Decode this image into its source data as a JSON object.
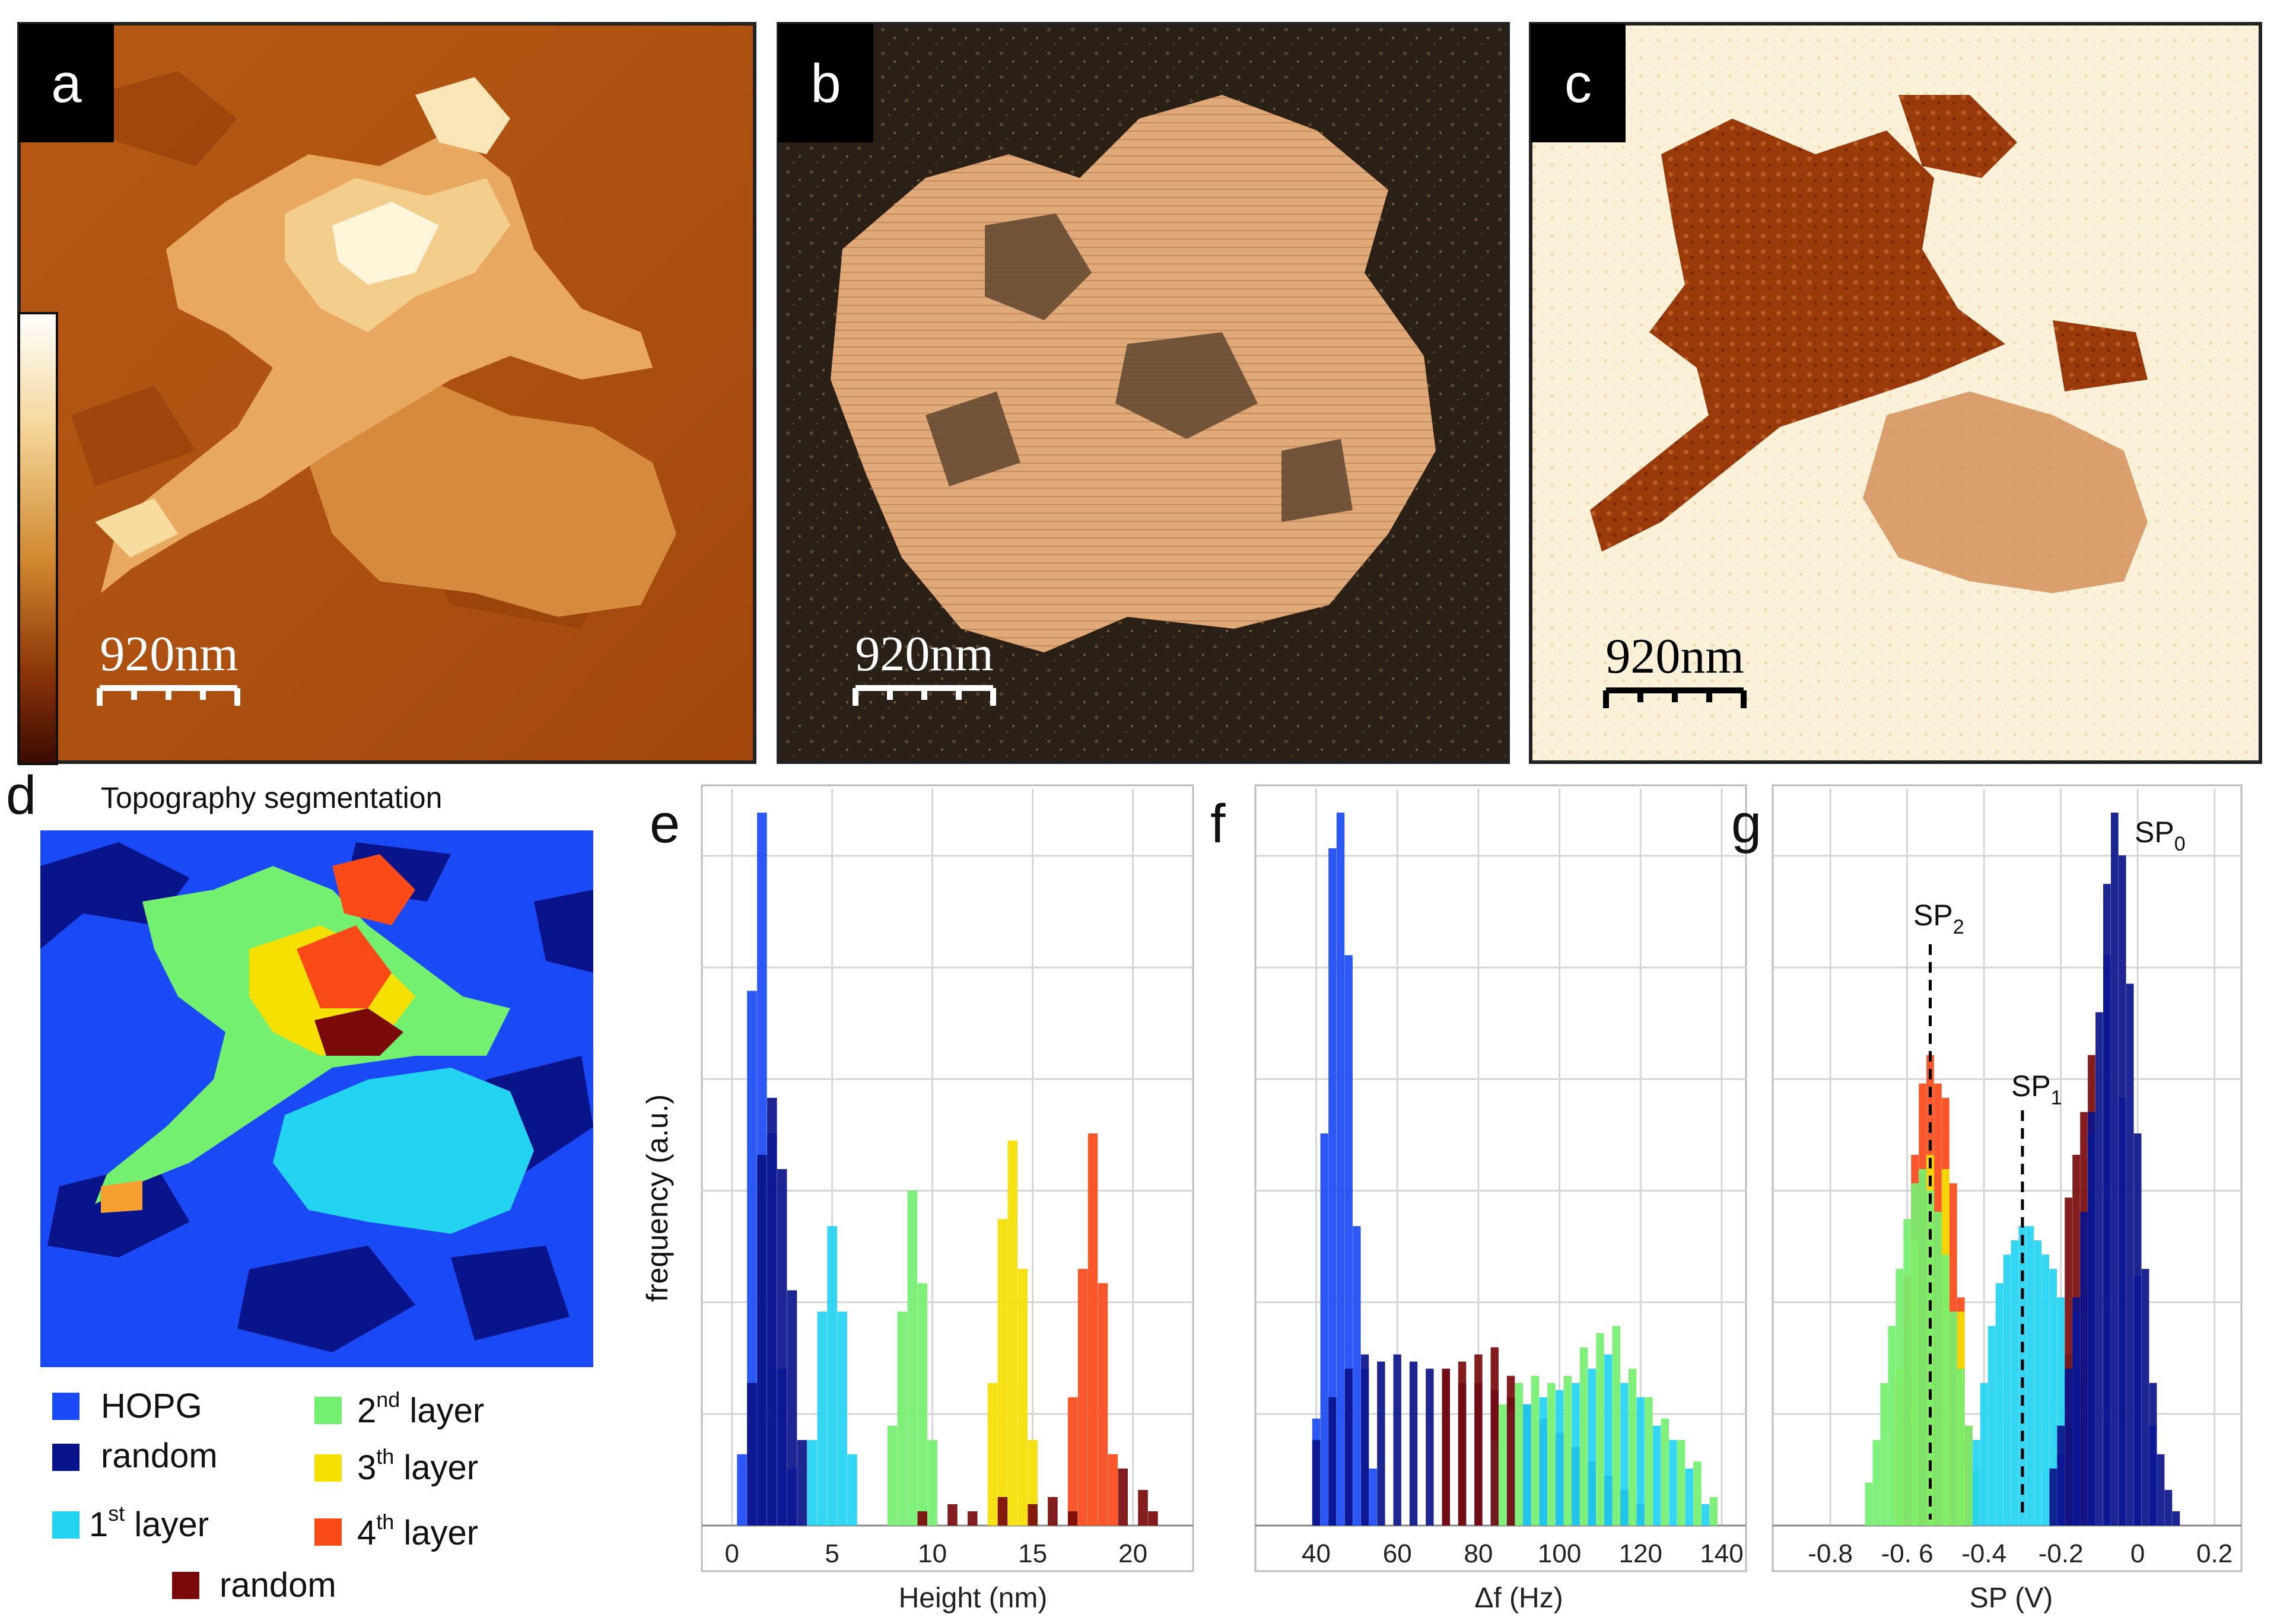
{
  "panels": {
    "a": {
      "label": "a",
      "scale": "920nm"
    },
    "b": {
      "label": "b",
      "scale": "920nm"
    },
    "c": {
      "label": "c",
      "scale": "920nm"
    },
    "d": {
      "label": "d",
      "title": "Topography segmentation"
    },
    "e": {
      "label": "e"
    },
    "f": {
      "label": "f"
    },
    "g": {
      "label": "g"
    }
  },
  "legend": [
    {
      "label": "HOPG",
      "sup": "",
      "rest": "",
      "color": "#1a4af5"
    },
    {
      "label": "random",
      "sup": "",
      "rest": "",
      "color": "#0a148a"
    },
    {
      "label": "1",
      "sup": "st",
      "rest": " layer",
      "color": "#22d3f2"
    },
    {
      "label": "random",
      "sup": "",
      "rest": "",
      "color": "#7a0a0a"
    },
    {
      "label": "2",
      "sup": "nd",
      "rest": " layer",
      "color": "#74f070"
    },
    {
      "label": "3",
      "sup": "th",
      "rest": " layer",
      "color": "#f5e000"
    },
    {
      "label": "4",
      "sup": "th",
      "rest": " layer",
      "color": "#fa4a18"
    }
  ],
  "annotations": {
    "sp0": {
      "main": "SP",
      "sub": "0"
    },
    "sp1": {
      "main": "SP",
      "sub": "1"
    },
    "sp2": {
      "main": "SP",
      "sub": "2"
    }
  },
  "chart_data": [
    {
      "type": "bar",
      "panel": "e",
      "xlabel": "Height (nm)",
      "ylabel": "frequency (a.u.)",
      "xlim": [
        -1.5,
        23
      ],
      "ticks": [
        0,
        5,
        10,
        15,
        20
      ],
      "ylim": [
        0,
        100
      ],
      "series": [
        {
          "name": "HOPG",
          "color": "#1a4af5",
          "x": [
            0.5,
            1.0,
            1.5,
            2.0,
            2.5,
            3.0
          ],
          "values": [
            10,
            75,
            100,
            55,
            22,
            8
          ]
        },
        {
          "name": "random",
          "color": "#0a148a",
          "x": [
            1.0,
            1.5,
            2.0,
            2.5,
            3.0,
            3.5
          ],
          "values": [
            20,
            52,
            60,
            50,
            33,
            12
          ]
        },
        {
          "name": "1st layer",
          "color": "#22d3f2",
          "x": [
            4.0,
            4.5,
            5.0,
            5.5,
            6.0
          ],
          "values": [
            12,
            30,
            42,
            30,
            10
          ]
        },
        {
          "name": "2nd layer",
          "color": "#74f070",
          "x": [
            8.0,
            8.5,
            9.0,
            9.5,
            10.0
          ],
          "values": [
            14,
            30,
            47,
            34,
            12
          ]
        },
        {
          "name": "3rd layer",
          "color": "#f5e000",
          "x": [
            13.0,
            13.5,
            14.0,
            14.5,
            15.0
          ],
          "values": [
            20,
            43,
            54,
            36,
            12
          ]
        },
        {
          "name": "4th layer",
          "color": "#fa4a18",
          "x": [
            17.0,
            17.5,
            18.0,
            18.5,
            19.0
          ],
          "values": [
            18,
            36,
            55,
            34,
            10
          ]
        },
        {
          "name": "random",
          "color": "#7a0a0a",
          "x": [
            9.5,
            11.0,
            12.0,
            13.5,
            15.0,
            16.0,
            17.0,
            19.5,
            20.5,
            21.0
          ],
          "values": [
            2,
            3,
            2,
            4,
            3,
            4,
            2,
            8,
            5,
            2
          ]
        }
      ]
    },
    {
      "type": "bar",
      "panel": "f",
      "xlabel": "Δf (Hz)",
      "xlim": [
        25,
        146
      ],
      "ticks": [
        40,
        60,
        80,
        100,
        120,
        140
      ],
      "ylim": [
        0,
        100
      ],
      "series": [
        {
          "name": "HOPG",
          "color": "#1a4af5",
          "x": [
            40,
            42,
            44,
            46,
            48,
            50,
            52,
            54
          ],
          "values": [
            15,
            55,
            95,
            100,
            80,
            42,
            22,
            8
          ]
        },
        {
          "name": "random",
          "color": "#0a148a",
          "x": [
            40,
            44,
            48,
            52,
            56,
            60,
            64,
            68,
            72,
            76,
            80,
            84,
            88,
            92,
            96,
            100,
            104,
            108,
            112,
            116,
            120
          ],
          "values": [
            12,
            18,
            22,
            24,
            23,
            24,
            23,
            22,
            22,
            20,
            20,
            19,
            18,
            17,
            15,
            13,
            11,
            9,
            7,
            5,
            3
          ]
        },
        {
          "name": "1st layer",
          "color": "#22d3f2",
          "x": [
            84,
            88,
            92,
            96,
            100,
            104,
            108,
            112,
            116,
            120,
            124,
            128,
            132,
            136
          ],
          "values": [
            12,
            16,
            17,
            18,
            19,
            20,
            22,
            24,
            20,
            18,
            14,
            12,
            8,
            3
          ]
        },
        {
          "name": "2nd layer",
          "color": "#74f070",
          "x": [
            86,
            90,
            94,
            98,
            102,
            106,
            110,
            114,
            118,
            122,
            126,
            130,
            134,
            138
          ],
          "values": [
            17,
            20,
            21,
            20,
            21,
            25,
            27,
            28,
            22,
            18,
            15,
            12,
            9,
            4
          ]
        },
        {
          "name": "random",
          "color": "#7a0a0a",
          "x": [
            72,
            76,
            80,
            84,
            88
          ],
          "values": [
            22,
            23,
            24,
            25,
            21
          ]
        }
      ]
    },
    {
      "type": "bar",
      "panel": "g",
      "xlabel": "SP (V)",
      "xlim": [
        -0.95,
        0.27
      ],
      "ticks": [
        -0.8,
        -0.6,
        -0.4,
        -0.2,
        0,
        0.2
      ],
      "tick_labels": [
        "-0.8",
        "-0. 6",
        "-0.4",
        "-0.2",
        "0",
        "0.2"
      ],
      "ylim": [
        0,
        100
      ],
      "markers": [
        {
          "name": "SP0",
          "x": -0.06
        },
        {
          "name": "SP1",
          "x": -0.3
        },
        {
          "name": "SP2",
          "x": -0.54
        }
      ],
      "series": [
        {
          "name": "4th layer",
          "color": "#fa4a18",
          "x": [
            -0.62,
            -0.6,
            -0.58,
            -0.56,
            -0.54,
            -0.52,
            -0.5,
            -0.48,
            -0.46,
            -0.44
          ],
          "values": [
            20,
            35,
            52,
            62,
            66,
            62,
            60,
            48,
            32,
            14
          ]
        },
        {
          "name": "3rd layer",
          "color": "#f5e000",
          "x": [
            -0.62,
            -0.58,
            -0.54,
            -0.5,
            -0.46
          ],
          "values": [
            22,
            40,
            52,
            50,
            30
          ]
        },
        {
          "name": "2nd layer",
          "color": "#74f070",
          "x": [
            -0.7,
            -0.68,
            -0.66,
            -0.64,
            -0.62,
            -0.6,
            -0.58,
            -0.56,
            -0.54,
            -0.52,
            -0.5,
            -0.48,
            -0.46,
            -0.44,
            -0.42
          ],
          "values": [
            6,
            12,
            20,
            28,
            36,
            43,
            48,
            50,
            47,
            44,
            38,
            30,
            22,
            14,
            8
          ]
        },
        {
          "name": "1st layer",
          "color": "#22d3f2",
          "x": [
            -0.42,
            -0.4,
            -0.38,
            -0.36,
            -0.34,
            -0.32,
            -0.3,
            -0.28,
            -0.26,
            -0.24,
            -0.22,
            -0.2,
            -0.18,
            -0.16
          ],
          "values": [
            12,
            20,
            28,
            34,
            38,
            40,
            42,
            42,
            40,
            38,
            36,
            32,
            24,
            14
          ]
        },
        {
          "name": "random",
          "color": "#7a0a0a",
          "x": [
            -0.18,
            -0.16,
            -0.14,
            -0.12
          ],
          "values": [
            46,
            52,
            58,
            66
          ]
        },
        {
          "name": "HOPG",
          "color": "#1a4af5",
          "x": [
            -0.2,
            -0.16,
            -0.12,
            -0.08,
            -0.04,
            0.0,
            0.04
          ],
          "values": [
            10,
            30,
            55,
            80,
            60,
            35,
            14
          ]
        },
        {
          "name": "random",
          "color": "#0a148a",
          "x": [
            -0.22,
            -0.2,
            -0.18,
            -0.16,
            -0.14,
            -0.12,
            -0.1,
            -0.08,
            -0.06,
            -0.04,
            -0.02,
            0.0,
            0.02,
            0.04,
            0.06,
            0.08,
            0.1
          ],
          "values": [
            8,
            14,
            22,
            32,
            44,
            58,
            72,
            90,
            100,
            94,
            76,
            55,
            36,
            20,
            10,
            5,
            2
          ]
        }
      ]
    }
  ]
}
